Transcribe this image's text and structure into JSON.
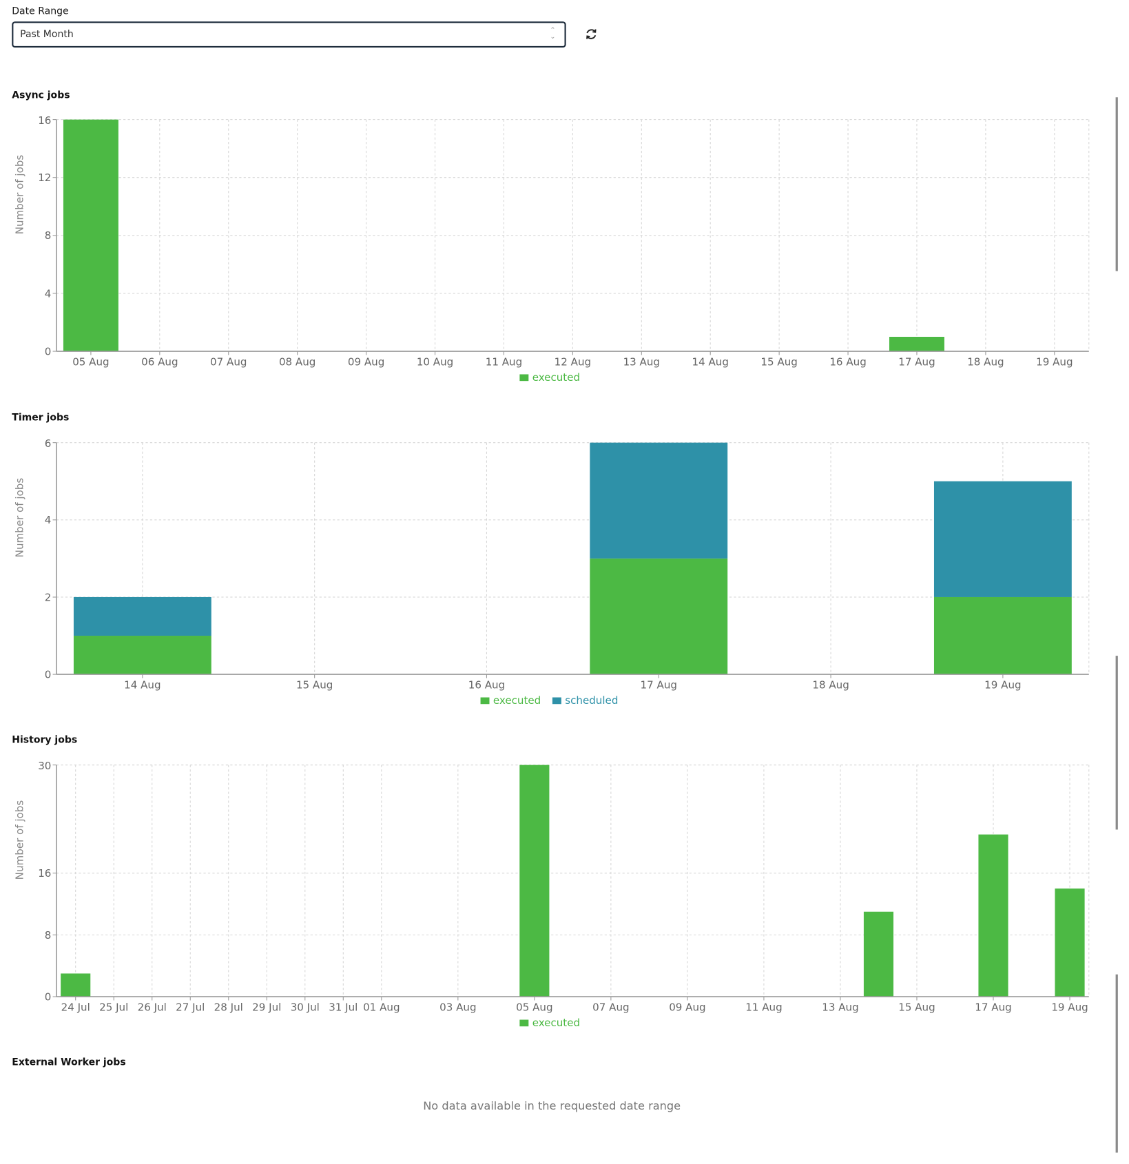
{
  "filter": {
    "label": "Date Range",
    "value": "Past Month",
    "refresh_icon": "refresh-icon"
  },
  "colors": {
    "executed": "#4cb944",
    "scheduled": "#2e91a8",
    "axis": "#999999",
    "grid": "#d6d6d6",
    "tick_text": "#666666"
  },
  "external": {
    "title": "External Worker jobs",
    "message": "No data available in the requested date range"
  },
  "chart_data": [
    {
      "title": "Async jobs",
      "type": "bar",
      "stacked": true,
      "ylabel": "Number of jobs",
      "ylim": [
        0,
        16
      ],
      "yticks": [
        0,
        4,
        8,
        12,
        16
      ],
      "grid": true,
      "legend": "bottom-center",
      "categories": [
        "05 Aug",
        "06 Aug",
        "07 Aug",
        "08 Aug",
        "09 Aug",
        "10 Aug",
        "11 Aug",
        "12 Aug",
        "13 Aug",
        "14 Aug",
        "15 Aug",
        "16 Aug",
        "17 Aug",
        "18 Aug",
        "19 Aug"
      ],
      "series": [
        {
          "name": "executed",
          "values": [
            16,
            0,
            0,
            0,
            0,
            0,
            0,
            0,
            0,
            0,
            0,
            0,
            1,
            0,
            0
          ]
        }
      ]
    },
    {
      "title": "Timer jobs",
      "type": "bar",
      "stacked": true,
      "ylabel": "Number of jobs",
      "ylim": [
        0,
        6
      ],
      "yticks": [
        0,
        2,
        4,
        6
      ],
      "grid": true,
      "legend": "bottom-center",
      "categories": [
        "14 Aug",
        "15 Aug",
        "16 Aug",
        "17 Aug",
        "18 Aug",
        "19 Aug"
      ],
      "series": [
        {
          "name": "executed",
          "values": [
            1,
            0,
            0,
            3,
            0,
            2
          ]
        },
        {
          "name": "scheduled",
          "values": [
            1,
            0,
            0,
            3,
            0,
            3
          ]
        }
      ]
    },
    {
      "title": "History jobs",
      "type": "bar",
      "xaxis": "time",
      "ylabel": "Number of jobs",
      "ylim": [
        0,
        30
      ],
      "yticks": [
        0,
        8,
        16,
        30
      ],
      "grid": true,
      "legend": "bottom-center",
      "xlim": [
        "24 Jul",
        "19 Aug"
      ],
      "xticks": [
        "24 Jul",
        "25 Jul",
        "26 Jul",
        "27 Jul",
        "28 Jul",
        "29 Jul",
        "30 Jul",
        "31 Jul",
        "01 Aug",
        "03 Aug",
        "05 Aug",
        "07 Aug",
        "09 Aug",
        "11 Aug",
        "13 Aug",
        "15 Aug",
        "17 Aug",
        "19 Aug"
      ],
      "series": [
        {
          "name": "executed",
          "points": [
            [
              "24 Jul",
              3
            ],
            [
              "05 Aug",
              30
            ],
            [
              "14 Aug",
              11
            ],
            [
              "17 Aug",
              21
            ],
            [
              "19 Aug",
              14
            ]
          ]
        }
      ]
    }
  ]
}
